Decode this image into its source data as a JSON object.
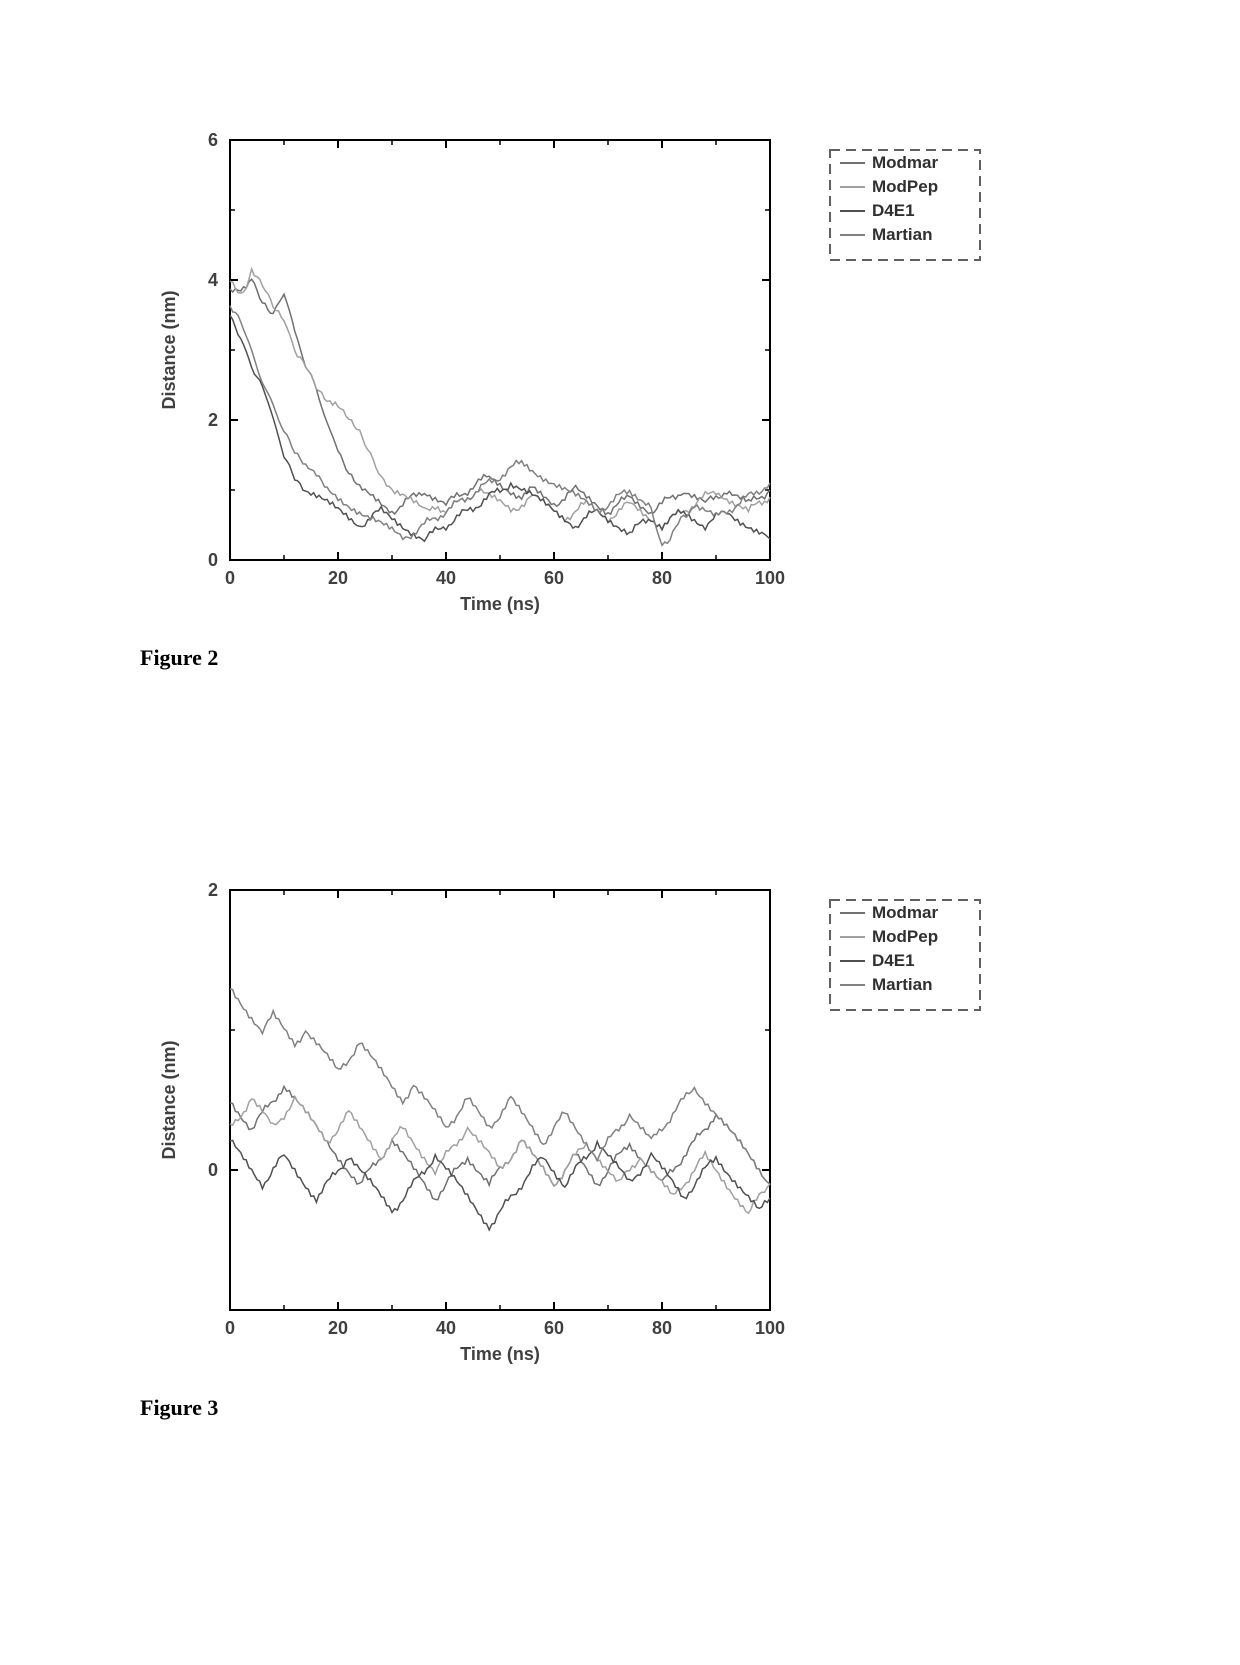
{
  "figure2": {
    "caption": "Figure 2",
    "chart": {
      "type": "line",
      "xlabel": "Time (ns)",
      "ylabel": "Distance (nm)",
      "xlim": [
        0,
        100
      ],
      "ylim": [
        0,
        6
      ],
      "xticks": [
        0,
        20,
        40,
        60,
        80,
        100
      ],
      "yticks": [
        0,
        2,
        4,
        6
      ],
      "background_color": "#ffffff",
      "axis_color": "#000000",
      "axis_width": 2,
      "label_fontsize": 18,
      "tick_fontsize": 18,
      "line_width": 1.5,
      "legend": {
        "items": [
          "Modmar",
          "ModPep",
          "D4E1",
          "Martian"
        ],
        "position": "right-outside-top",
        "border_dashed": true,
        "border_color": "#606060",
        "text_color": "#303030",
        "fontsize": 17
      },
      "series": [
        {
          "name": "Modmar",
          "color": "#707070",
          "x": [
            0,
            2,
            4,
            6,
            8,
            10,
            12,
            14,
            16,
            18,
            20,
            22,
            24,
            26,
            28,
            30,
            32,
            34,
            36,
            38,
            40,
            42,
            44,
            46,
            48,
            50,
            52,
            54,
            56,
            58,
            60,
            62,
            64,
            66,
            68,
            70,
            72,
            74,
            76,
            78,
            80,
            82,
            84,
            86,
            88,
            90,
            92,
            94,
            96,
            98,
            100
          ],
          "y": [
            3.8,
            3.9,
            4.0,
            3.7,
            3.5,
            3.8,
            3.2,
            2.8,
            2.5,
            2.0,
            1.5,
            1.2,
            1.0,
            0.9,
            0.8,
            0.7,
            0.8,
            0.9,
            1.0,
            0.9,
            0.8,
            0.9,
            1.0,
            1.1,
            1.2,
            1.1,
            1.0,
            0.9,
            1.0,
            0.9,
            0.8,
            0.9,
            1.0,
            0.9,
            0.8,
            0.7,
            0.8,
            0.9,
            0.8,
            0.7,
            0.8,
            0.9,
            1.0,
            0.9,
            0.8,
            0.9,
            1.0,
            0.9,
            0.8,
            0.9,
            1.0
          ]
        },
        {
          "name": "ModPep",
          "color": "#a0a0a0",
          "x": [
            0,
            2,
            4,
            6,
            8,
            10,
            12,
            14,
            16,
            18,
            20,
            22,
            24,
            26,
            28,
            30,
            32,
            34,
            36,
            38,
            40,
            42,
            44,
            46,
            48,
            50,
            52,
            54,
            56,
            58,
            60,
            62,
            64,
            66,
            68,
            70,
            72,
            74,
            76,
            78,
            80,
            82,
            84,
            86,
            88,
            90,
            92,
            94,
            96,
            98,
            100
          ],
          "y": [
            4.0,
            3.8,
            4.1,
            3.9,
            3.6,
            3.4,
            3.0,
            2.8,
            2.5,
            2.3,
            2.2,
            2.0,
            1.8,
            1.5,
            1.2,
            1.0,
            0.9,
            0.8,
            0.7,
            0.8,
            0.7,
            0.8,
            0.9,
            1.0,
            0.9,
            0.8,
            0.7,
            0.8,
            0.9,
            0.8,
            0.7,
            0.6,
            0.7,
            0.8,
            0.7,
            0.6,
            0.7,
            0.8,
            0.7,
            0.6,
            0.5,
            0.6,
            0.7,
            0.8,
            0.9,
            1.0,
            0.9,
            0.8,
            0.7,
            0.8,
            0.9
          ]
        },
        {
          "name": "D4E1",
          "color": "#505050",
          "x": [
            0,
            2,
            4,
            6,
            8,
            10,
            12,
            14,
            16,
            18,
            20,
            22,
            24,
            26,
            28,
            30,
            32,
            34,
            36,
            38,
            40,
            42,
            44,
            46,
            48,
            50,
            52,
            54,
            56,
            58,
            60,
            62,
            64,
            66,
            68,
            70,
            72,
            74,
            76,
            78,
            80,
            82,
            84,
            86,
            88,
            90,
            92,
            94,
            96,
            98,
            100
          ],
          "y": [
            3.5,
            3.2,
            2.8,
            2.5,
            2.0,
            1.5,
            1.2,
            1.0,
            0.9,
            0.8,
            0.7,
            0.6,
            0.5,
            0.6,
            0.7,
            0.6,
            0.5,
            0.4,
            0.3,
            0.4,
            0.5,
            0.6,
            0.7,
            0.8,
            0.9,
            1.0,
            1.1,
            1.0,
            0.9,
            0.8,
            0.7,
            0.6,
            0.5,
            0.6,
            0.7,
            0.6,
            0.5,
            0.4,
            0.5,
            0.6,
            0.5,
            0.6,
            0.7,
            0.6,
            0.5,
            0.6,
            0.7,
            0.6,
            0.5,
            0.4,
            0.3
          ]
        },
        {
          "name": "Martian",
          "color": "#808080",
          "x": [
            0,
            2,
            4,
            6,
            8,
            10,
            12,
            14,
            16,
            18,
            20,
            22,
            24,
            26,
            28,
            30,
            32,
            34,
            36,
            38,
            40,
            42,
            44,
            46,
            48,
            50,
            52,
            54,
            56,
            58,
            60,
            62,
            64,
            66,
            68,
            70,
            72,
            74,
            76,
            78,
            80,
            82,
            84,
            86,
            88,
            90,
            92,
            94,
            96,
            98,
            100
          ],
          "y": [
            3.6,
            3.4,
            3.0,
            2.6,
            2.2,
            1.8,
            1.5,
            1.3,
            1.2,
            1.0,
            0.9,
            0.8,
            0.7,
            0.6,
            0.5,
            0.4,
            0.3,
            0.4,
            0.5,
            0.6,
            0.7,
            0.8,
            0.9,
            1.0,
            1.1,
            1.2,
            1.3,
            1.4,
            1.3,
            1.2,
            1.1,
            1.0,
            0.9,
            0.8,
            0.7,
            0.8,
            0.9,
            1.0,
            0.9,
            0.8,
            0.2,
            0.4,
            0.6,
            0.8,
            0.7,
            0.6,
            0.7,
            0.8,
            0.9,
            1.0,
            1.1
          ]
        }
      ]
    }
  },
  "figure3": {
    "caption": "Figure 3",
    "chart": {
      "type": "line",
      "xlabel": "Time (ns)",
      "ylabel": "Distance (nm)",
      "xlim": [
        0,
        100
      ],
      "ylim": [
        -1,
        2
      ],
      "xticks": [
        0,
        20,
        40,
        60,
        80,
        100
      ],
      "yticks": [
        0,
        2
      ],
      "background_color": "#ffffff",
      "axis_color": "#000000",
      "axis_width": 2,
      "label_fontsize": 18,
      "tick_fontsize": 18,
      "line_width": 1.5,
      "legend": {
        "items": [
          "Modmar",
          "ModPep",
          "D4E1",
          "Martian"
        ],
        "position": "right-outside-top",
        "border_dashed": true,
        "border_color": "#606060",
        "text_color": "#303030",
        "fontsize": 17
      },
      "series": [
        {
          "name": "Modmar",
          "color": "#707070",
          "x": [
            0,
            2,
            4,
            6,
            8,
            10,
            12,
            14,
            16,
            18,
            20,
            22,
            24,
            26,
            28,
            30,
            32,
            34,
            36,
            38,
            40,
            42,
            44,
            46,
            48,
            50,
            52,
            54,
            56,
            58,
            60,
            62,
            64,
            66,
            68,
            70,
            72,
            74,
            76,
            78,
            80,
            82,
            84,
            86,
            88,
            90,
            92,
            94,
            96,
            98,
            100
          ],
          "y": [
            0.5,
            0.4,
            0.3,
            0.4,
            0.5,
            0.6,
            0.5,
            0.4,
            0.3,
            0.2,
            0.1,
            0.0,
            -0.1,
            0.0,
            0.1,
            0.2,
            0.1,
            0.0,
            -0.1,
            -0.2,
            -0.1,
            0.0,
            0.1,
            0.0,
            -0.1,
            0.0,
            0.1,
            0.2,
            0.1,
            0.0,
            -0.1,
            0.0,
            0.1,
            0.0,
            -0.1,
            0.0,
            0.1,
            0.2,
            0.1,
            0.0,
            -0.1,
            0.0,
            0.1,
            0.2,
            0.3,
            0.4,
            0.3,
            0.2,
            0.1,
            0.0,
            -0.1
          ]
        },
        {
          "name": "ModPep",
          "color": "#a0a0a0",
          "x": [
            0,
            2,
            4,
            6,
            8,
            10,
            12,
            14,
            16,
            18,
            20,
            22,
            24,
            26,
            28,
            30,
            32,
            34,
            36,
            38,
            40,
            42,
            44,
            46,
            48,
            50,
            52,
            54,
            56,
            58,
            60,
            62,
            64,
            66,
            68,
            70,
            72,
            74,
            76,
            78,
            80,
            82,
            84,
            86,
            88,
            90,
            92,
            94,
            96,
            98,
            100
          ],
          "y": [
            0.3,
            0.4,
            0.5,
            0.4,
            0.3,
            0.4,
            0.5,
            0.4,
            0.3,
            0.2,
            0.3,
            0.4,
            0.3,
            0.2,
            0.1,
            0.2,
            0.3,
            0.2,
            0.1,
            0.0,
            0.1,
            0.2,
            0.3,
            0.2,
            0.1,
            0.0,
            0.1,
            0.2,
            0.1,
            0.0,
            -0.1,
            0.0,
            0.1,
            0.2,
            0.1,
            0.0,
            -0.1,
            0.0,
            0.1,
            0.0,
            -0.1,
            -0.2,
            -0.1,
            0.0,
            0.1,
            0.0,
            -0.1,
            -0.2,
            -0.3,
            -0.2,
            -0.1
          ]
        },
        {
          "name": "D4E1",
          "color": "#505050",
          "x": [
            0,
            2,
            4,
            6,
            8,
            10,
            12,
            14,
            16,
            18,
            20,
            22,
            24,
            26,
            28,
            30,
            32,
            34,
            36,
            38,
            40,
            42,
            44,
            46,
            48,
            50,
            52,
            54,
            56,
            58,
            60,
            62,
            64,
            66,
            68,
            70,
            72,
            74,
            76,
            78,
            80,
            82,
            84,
            86,
            88,
            90,
            92,
            94,
            96,
            98,
            100
          ],
          "y": [
            0.2,
            0.1,
            0.0,
            -0.1,
            0.0,
            0.1,
            0.0,
            -0.1,
            -0.2,
            -0.1,
            0.0,
            0.1,
            0.0,
            -0.1,
            -0.2,
            -0.3,
            -0.2,
            -0.1,
            0.0,
            0.1,
            0.0,
            -0.1,
            -0.2,
            -0.3,
            -0.4,
            -0.3,
            -0.2,
            -0.1,
            0.0,
            0.1,
            0.0,
            -0.1,
            0.0,
            0.1,
            0.2,
            0.1,
            0.0,
            -0.1,
            0.0,
            0.1,
            0.0,
            -0.1,
            -0.2,
            -0.1,
            0.0,
            0.1,
            0.0,
            -0.1,
            -0.2,
            -0.3,
            -0.2
          ]
        },
        {
          "name": "Martian",
          "color": "#808080",
          "x": [
            0,
            2,
            4,
            6,
            8,
            10,
            12,
            14,
            16,
            18,
            20,
            22,
            24,
            26,
            28,
            30,
            32,
            34,
            36,
            38,
            40,
            42,
            44,
            46,
            48,
            50,
            52,
            54,
            56,
            58,
            60,
            62,
            64,
            66,
            68,
            70,
            72,
            74,
            76,
            78,
            80,
            82,
            84,
            86,
            88,
            90,
            92,
            94,
            96,
            98,
            100
          ],
          "y": [
            1.3,
            1.2,
            1.1,
            1.0,
            1.1,
            1.0,
            0.9,
            1.0,
            0.9,
            0.8,
            0.7,
            0.8,
            0.9,
            0.8,
            0.7,
            0.6,
            0.5,
            0.6,
            0.5,
            0.4,
            0.3,
            0.4,
            0.5,
            0.4,
            0.3,
            0.4,
            0.5,
            0.4,
            0.3,
            0.2,
            0.3,
            0.4,
            0.3,
            0.2,
            0.1,
            0.2,
            0.3,
            0.4,
            0.3,
            0.2,
            0.3,
            0.4,
            0.5,
            0.6,
            0.5,
            0.4,
            0.3,
            0.2,
            0.1,
            0.0,
            -0.1
          ]
        }
      ]
    }
  }
}
